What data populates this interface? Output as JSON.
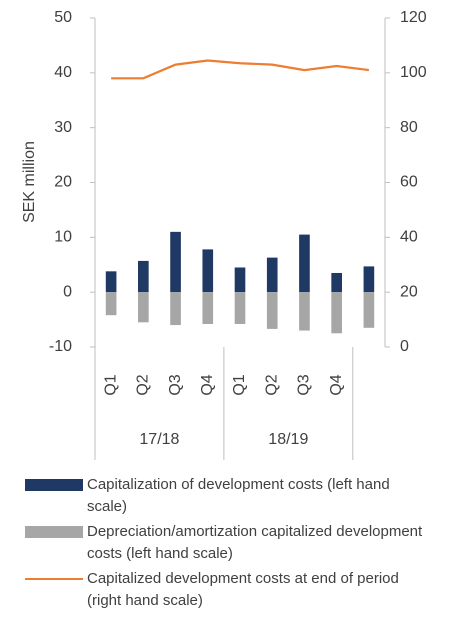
{
  "chart_data": {
    "type": "bar-line",
    "y_label": "SEK million",
    "categories": [
      "Q1",
      "Q2",
      "Q3",
      "Q4",
      "Q1",
      "Q2",
      "Q3",
      "Q4",
      null
    ],
    "groups": [
      "17/18",
      "18/19"
    ],
    "series": [
      {
        "name": "Capitalization of development costs (left hand scale)",
        "color": "#1f3864",
        "type": "bar",
        "values": [
          3.8,
          5.7,
          11.0,
          7.8,
          4.5,
          6.3,
          10.5,
          3.5,
          4.7
        ]
      },
      {
        "name": "Depreciation/amortization capitalized development costs (left hand scale)",
        "color": "#a6a6a6",
        "type": "bar",
        "values": [
          -4.2,
          -5.5,
          -6.0,
          -5.8,
          -5.8,
          -6.7,
          -7.0,
          -7.5,
          -6.5
        ]
      },
      {
        "name": "Capitalized development costs at end of period (right hand scale)",
        "color": "#ed7d31",
        "type": "line",
        "axis": "y2",
        "values": [
          98,
          98,
          103,
          104.5,
          103.5,
          103,
          101,
          102.5,
          101
        ]
      }
    ],
    "ylim": [
      -10,
      50
    ],
    "yticks": [
      -10,
      0,
      10,
      20,
      30,
      40,
      50
    ],
    "y2lim": [
      0,
      120
    ],
    "y2ticks": [
      0,
      20,
      40,
      60,
      80,
      100,
      120
    ]
  }
}
